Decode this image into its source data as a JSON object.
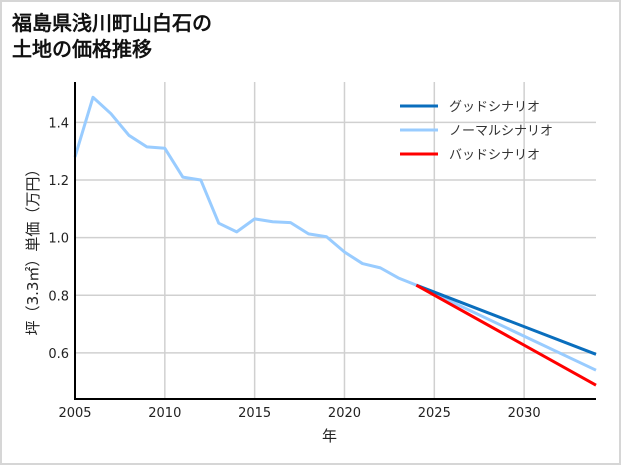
{
  "title_line1": "福島県浅川町山白石の",
  "title_line2": "土地の価格推移",
  "chart_data": {
    "type": "line",
    "title": "福島県浅川町山白石の土地の価格推移",
    "xlabel": "年",
    "ylabel": "坪（3.3㎡）単価（万円）",
    "xlim": [
      2005,
      2034
    ],
    "ylim": [
      0.44,
      1.54
    ],
    "xticks": [
      2005,
      2010,
      2015,
      2020,
      2025,
      2030
    ],
    "yticks": [
      0.6,
      0.8,
      1.0,
      1.2,
      1.4
    ],
    "ytick_labels": [
      "0.6",
      "0.8",
      "1.0",
      "1.2",
      "1.4"
    ],
    "grid": true,
    "legend_position": "upper right",
    "series": [
      {
        "name": "グッドシナリオ",
        "color": "#0a6ebd",
        "x": [
          2024,
          2034
        ],
        "values": [
          0.835,
          0.595
        ]
      },
      {
        "name": "ノーマルシナリオ",
        "color": "#99ccff",
        "x": [
          2005,
          2006,
          2007,
          2008,
          2009,
          2010,
          2011,
          2012,
          2013,
          2014,
          2015,
          2016,
          2017,
          2018,
          2019,
          2020,
          2021,
          2022,
          2023,
          2024,
          2034
        ],
        "values": [
          1.28,
          1.487,
          1.43,
          1.355,
          1.315,
          1.31,
          1.21,
          1.2,
          1.05,
          1.02,
          1.065,
          1.055,
          1.052,
          1.013,
          1.003,
          0.95,
          0.91,
          0.895,
          0.86,
          0.835,
          0.54
        ]
      },
      {
        "name": "バッドシナリオ",
        "color": "#ff0000",
        "x": [
          2024,
          2034
        ],
        "values": [
          0.835,
          0.488
        ]
      }
    ]
  }
}
